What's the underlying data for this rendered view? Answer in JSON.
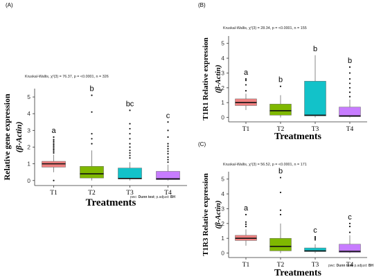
{
  "chart_data": [
    {
      "panel_label": "(A)",
      "type": "boxplot",
      "stat_text": "Kruskal-Wallis, χ²(3) = 76.37, p = <0.0001, n = 326",
      "xlabel": "Treatments",
      "ylabel_line1": "Relative gene expression",
      "ylabel_line2": "(β-Actin)",
      "ylim": [
        -0.3,
        5.5
      ],
      "yticks": [
        0,
        1,
        2,
        3,
        4,
        5
      ],
      "footnote_pre": "pwc: ",
      "footnote_test": "Dunn test",
      "footnote_mid": "; p.adjust: ",
      "footnote_adj": "BH",
      "categories": [
        "T1",
        "T2",
        "T3",
        "T4"
      ],
      "colors": [
        "#f08080",
        "#7fb800",
        "#12c2c9",
        "#c77cff"
      ],
      "groups": [
        {
          "name": "T1",
          "min": 0.5,
          "q1": 0.8,
          "median": 1.0,
          "q3": 1.15,
          "max": 1.55,
          "letter": "a",
          "outliers": [
            0.0,
            1.65,
            1.75,
            1.85,
            1.95,
            2.05,
            2.15,
            2.25,
            2.35,
            2.45,
            2.6
          ]
        },
        {
          "name": "T2",
          "min": 0.0,
          "q1": 0.15,
          "median": 0.4,
          "q3": 0.85,
          "max": 1.8,
          "letter": "b",
          "outliers": [
            2.2,
            2.5,
            2.8,
            4.1,
            5.1
          ]
        },
        {
          "name": "T3",
          "min": 0.0,
          "q1": 0.1,
          "median": 0.12,
          "q3": 0.75,
          "max": 1.1,
          "letter": "bc",
          "outliers": [
            1.35,
            1.5,
            1.65,
            1.8,
            2.0,
            2.2,
            2.5,
            2.8,
            3.1,
            3.4,
            4.2
          ]
        },
        {
          "name": "T4",
          "min": 0.0,
          "q1": 0.05,
          "median": 0.1,
          "q3": 0.55,
          "max": 0.95,
          "letter": "c",
          "outliers": [
            1.1,
            1.25,
            1.4,
            1.6,
            1.75,
            1.9,
            2.05,
            2.2,
            2.6,
            3.0,
            3.5
          ]
        }
      ]
    },
    {
      "panel_label": "(B)",
      "type": "boxplot",
      "stat_text": "Kruskal-Wallis, χ²(3) = 28.34, p = <0.0001, n = 155",
      "xlabel": "Treatments",
      "ylabel_line1": "T1R1 Relative expression",
      "ylabel_line2": "(β-Actin)",
      "ylim": [
        -0.3,
        5.5
      ],
      "yticks": [
        0,
        1,
        2,
        3,
        4,
        5
      ],
      "categories": [
        "T1",
        "T2",
        "T3",
        "T4"
      ],
      "colors": [
        "#f08080",
        "#7fb800",
        "#12c2c9",
        "#c77cff"
      ],
      "groups": [
        {
          "name": "T1",
          "min": 0.5,
          "q1": 0.8,
          "median": 1.0,
          "q3": 1.25,
          "max": 1.6,
          "letter": "a",
          "outliers": [
            1.8,
            2.2,
            2.5,
            2.6
          ]
        },
        {
          "name": "T2",
          "min": 0.0,
          "q1": 0.15,
          "median": 0.45,
          "q3": 0.9,
          "max": 1.5,
          "letter": "b",
          "outliers": [
            2.1
          ]
        },
        {
          "name": "T3",
          "min": 0.0,
          "q1": 0.1,
          "median": 0.15,
          "q3": 2.45,
          "max": 4.2,
          "letter": "b",
          "outliers": []
        },
        {
          "name": "T4",
          "min": 0.0,
          "q1": 0.05,
          "median": 0.1,
          "q3": 0.7,
          "max": 1.2,
          "letter": "b",
          "outliers": [
            1.4,
            1.7,
            2.0,
            2.3,
            2.6,
            3.0,
            3.4
          ]
        }
      ]
    },
    {
      "panel_label": "(C)",
      "type": "boxplot",
      "stat_text": "Kruskal-Wallis, χ²(3) = 56.52, p = <0.0001, n = 171",
      "xlabel": "Treatments",
      "ylabel_line1": "T1R3 Relative expression",
      "ylabel_line2": "(β-Actin)",
      "ylim": [
        -0.3,
        5.5
      ],
      "yticks": [
        0,
        1,
        2,
        3,
        4,
        5
      ],
      "footnote_pre": "pwc: ",
      "footnote_test": "Dunn test",
      "footnote_mid": "; p.adjust: ",
      "footnote_adj": "BH",
      "categories": [
        "T1",
        "T2",
        "T3",
        "T4"
      ],
      "colors": [
        "#f08080",
        "#7fb800",
        "#12c2c9",
        "#c77cff"
      ],
      "groups": [
        {
          "name": "T1",
          "min": 0.5,
          "q1": 0.85,
          "median": 1.0,
          "q3": 1.2,
          "max": 1.6,
          "letter": "a",
          "outliers": [
            1.8,
            1.95,
            2.1,
            2.6
          ]
        },
        {
          "name": "T2",
          "min": 0.0,
          "q1": 0.15,
          "median": 0.45,
          "q3": 1.0,
          "max": 2.0,
          "letter": "b",
          "outliers": [
            2.6,
            2.9,
            4.1,
            5.1
          ]
        },
        {
          "name": "T3",
          "min": 0.0,
          "q1": 0.1,
          "median": 0.15,
          "q3": 0.35,
          "max": 0.6,
          "letter": "c",
          "outliers": [
            0.9,
            1.0,
            1.1
          ]
        },
        {
          "name": "T4",
          "min": 0.0,
          "q1": 0.05,
          "median": 0.12,
          "q3": 0.6,
          "max": 1.2,
          "letter": "c",
          "outliers": [
            1.4,
            1.8,
            2.0
          ]
        }
      ]
    }
  ]
}
